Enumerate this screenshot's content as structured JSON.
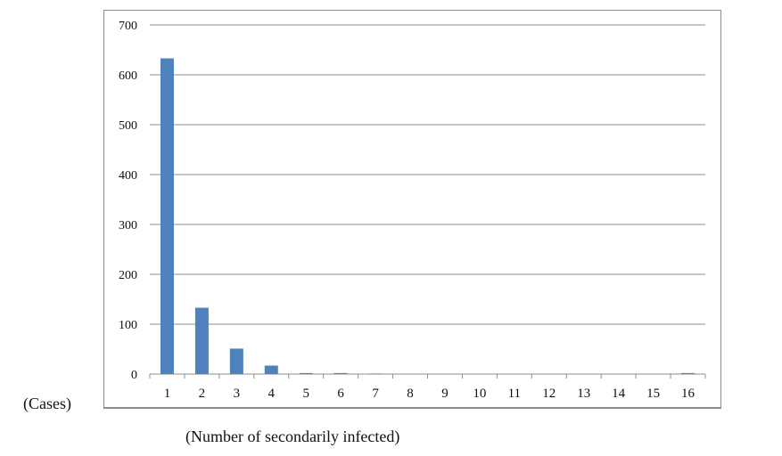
{
  "chart_data": {
    "type": "bar",
    "categories": [
      "1",
      "2",
      "3",
      "4",
      "5",
      "6",
      "7",
      "8",
      "9",
      "10",
      "11",
      "12",
      "13",
      "14",
      "15",
      "16"
    ],
    "values": [
      633,
      133,
      51,
      17,
      2,
      2,
      1,
      0,
      0,
      0,
      0,
      0,
      0,
      0,
      0,
      2
    ],
    "title": "",
    "xlabel": "(Number of secondarily infected)",
    "ylabel": "(Cases)",
    "ylim": [
      0,
      700
    ],
    "yticks": [
      0,
      100,
      200,
      300,
      400,
      500,
      600,
      700
    ],
    "grid": true,
    "bar_color": "#4f81bd",
    "grid_color": "#8c8c8c"
  }
}
